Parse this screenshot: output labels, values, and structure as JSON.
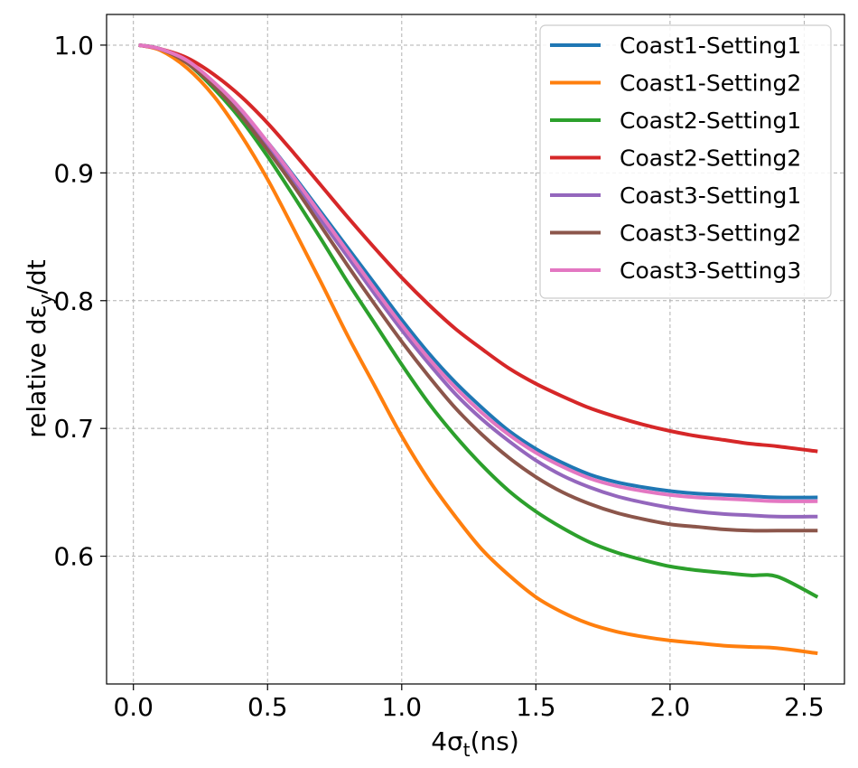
{
  "chart_data": {
    "type": "line",
    "title": "",
    "xlabel_main": "4σ",
    "xlabel_sub": "t",
    "xlabel_tail": "(ns)",
    "ylabel_main": "relative dε",
    "ylabel_sub": "y",
    "ylabel_tail": "/dt",
    "xlim": [
      -0.1,
      2.65
    ],
    "ylim": [
      0.5,
      1.024
    ],
    "xticks": [
      0.0,
      0.5,
      1.0,
      1.5,
      2.0,
      2.5
    ],
    "xtick_labels": [
      "0.0",
      "0.5",
      "1.0",
      "1.5",
      "2.0",
      "2.5"
    ],
    "yticks": [
      0.6,
      0.7,
      0.8,
      0.9,
      1.0
    ],
    "ytick_labels": [
      "0.6",
      "0.7",
      "0.8",
      "0.9",
      "1.0"
    ],
    "grid": true,
    "legend_position": "top-right",
    "x": [
      0.02,
      0.1,
      0.2,
      0.3,
      0.4,
      0.5,
      0.6,
      0.7,
      0.8,
      0.9,
      1.0,
      1.1,
      1.2,
      1.3,
      1.4,
      1.5,
      1.6,
      1.7,
      1.8,
      1.9,
      2.0,
      2.1,
      2.2,
      2.3,
      2.4,
      2.55
    ],
    "series": [
      {
        "name": "Coast1-Setting1",
        "color": "#1f77b4",
        "values": [
          1.0,
          0.997,
          0.987,
          0.97,
          0.948,
          0.924,
          0.897,
          0.869,
          0.841,
          0.813,
          0.785,
          0.759,
          0.736,
          0.716,
          0.698,
          0.684,
          0.673,
          0.664,
          0.658,
          0.654,
          0.651,
          0.649,
          0.648,
          0.647,
          0.646,
          0.646
        ]
      },
      {
        "name": "Coast1-Setting2",
        "color": "#ff7f0e",
        "values": [
          1.0,
          0.996,
          0.982,
          0.96,
          0.93,
          0.895,
          0.855,
          0.814,
          0.772,
          0.733,
          0.694,
          0.66,
          0.631,
          0.605,
          0.585,
          0.568,
          0.556,
          0.547,
          0.541,
          0.537,
          0.534,
          0.532,
          0.53,
          0.529,
          0.528,
          0.524
        ]
      },
      {
        "name": "Coast2-Setting1",
        "color": "#2ca02c",
        "values": [
          1.0,
          0.997,
          0.986,
          0.966,
          0.942,
          0.913,
          0.881,
          0.848,
          0.814,
          0.782,
          0.75,
          0.72,
          0.694,
          0.671,
          0.651,
          0.635,
          0.622,
          0.611,
          0.603,
          0.597,
          0.592,
          0.589,
          0.587,
          0.585,
          0.584,
          0.568
        ]
      },
      {
        "name": "Coast2-Setting2",
        "color": "#d62728",
        "values": [
          1.0,
          0.997,
          0.99,
          0.977,
          0.96,
          0.939,
          0.915,
          0.89,
          0.865,
          0.841,
          0.818,
          0.797,
          0.778,
          0.762,
          0.747,
          0.735,
          0.725,
          0.716,
          0.709,
          0.703,
          0.698,
          0.694,
          0.691,
          0.688,
          0.686,
          0.682
        ]
      },
      {
        "name": "Coast3-Setting1",
        "color": "#9467bd",
        "values": [
          1.0,
          0.997,
          0.987,
          0.969,
          0.947,
          0.921,
          0.893,
          0.863,
          0.834,
          0.805,
          0.777,
          0.751,
          0.727,
          0.707,
          0.69,
          0.675,
          0.663,
          0.654,
          0.647,
          0.642,
          0.638,
          0.635,
          0.633,
          0.632,
          0.631,
          0.631
        ]
      },
      {
        "name": "Coast3-Setting2",
        "color": "#8c564b",
        "values": [
          1.0,
          0.997,
          0.986,
          0.968,
          0.945,
          0.918,
          0.889,
          0.858,
          0.827,
          0.797,
          0.768,
          0.741,
          0.716,
          0.695,
          0.677,
          0.662,
          0.65,
          0.641,
          0.634,
          0.629,
          0.625,
          0.623,
          0.621,
          0.62,
          0.62,
          0.62
        ]
      },
      {
        "name": "Coast3-Setting3",
        "color": "#e377c2",
        "values": [
          1.0,
          0.997,
          0.988,
          0.971,
          0.95,
          0.924,
          0.896,
          0.867,
          0.838,
          0.809,
          0.781,
          0.755,
          0.732,
          0.712,
          0.695,
          0.681,
          0.67,
          0.661,
          0.655,
          0.651,
          0.648,
          0.646,
          0.645,
          0.644,
          0.643,
          0.643
        ]
      }
    ]
  }
}
